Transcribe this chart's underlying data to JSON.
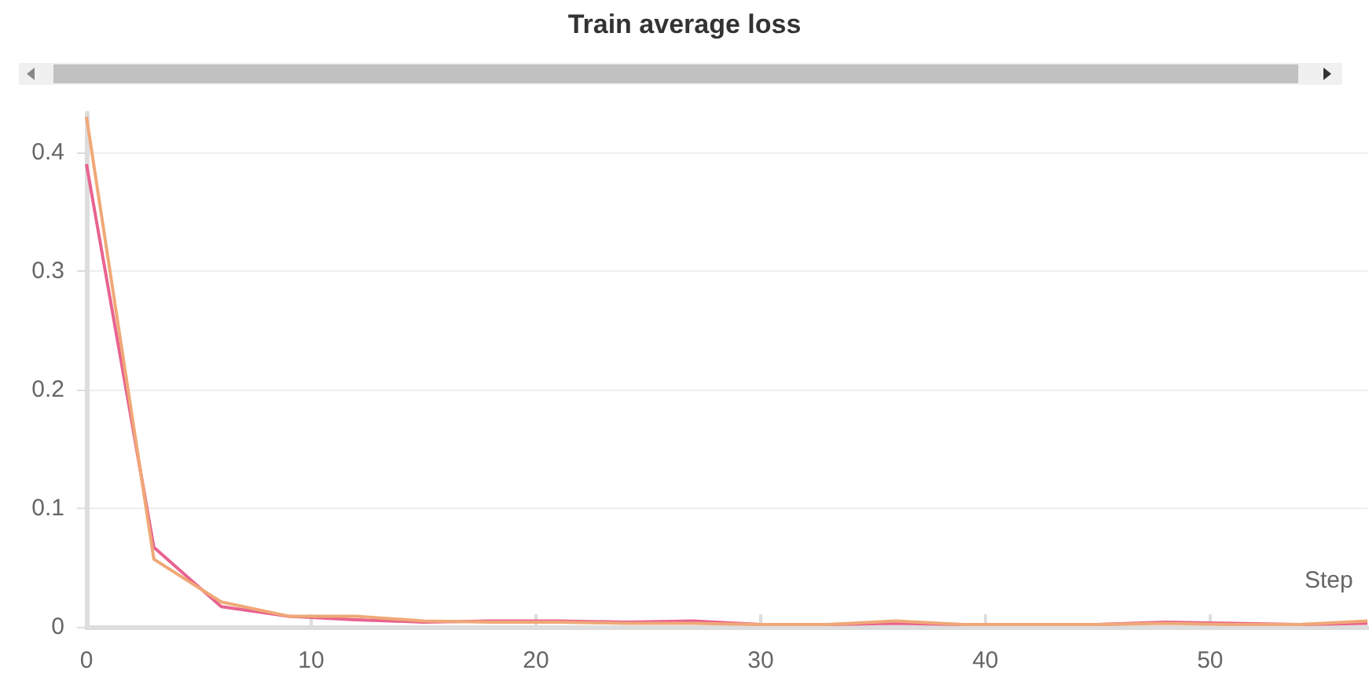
{
  "chart_data": {
    "type": "line",
    "title": "Train average loss",
    "xlabel": "Step",
    "x": [
      0,
      3,
      6,
      9,
      12,
      15,
      18,
      21,
      24,
      27,
      30,
      33,
      36,
      39,
      42,
      45,
      48,
      51,
      54,
      57
    ],
    "series": [
      {
        "color": "#e8638f",
        "values": [
          0.39,
          0.067,
          0.017,
          0.009,
          0.006,
          0.004,
          0.005,
          0.005,
          0.004,
          0.005,
          0.002,
          0.002,
          0.003,
          0.002,
          0.002,
          0.002,
          0.004,
          0.003,
          0.002,
          0.003
        ]
      },
      {
        "color": "#f0a877",
        "values": [
          0.43,
          0.057,
          0.021,
          0.009,
          0.009,
          0.005,
          0.004,
          0.004,
          0.003,
          0.003,
          0.002,
          0.002,
          0.005,
          0.002,
          0.002,
          0.002,
          0.003,
          0.002,
          0.002,
          0.005
        ]
      }
    ],
    "xlim": [
      0,
      57
    ],
    "xticks": [
      0,
      10,
      20,
      30,
      40,
      50
    ],
    "ylim": [
      0,
      0.433
    ],
    "yticks": [
      0,
      0.1,
      0.2,
      0.3,
      0.4
    ],
    "grid": "y",
    "marker": "none",
    "line_style": "solid"
  }
}
